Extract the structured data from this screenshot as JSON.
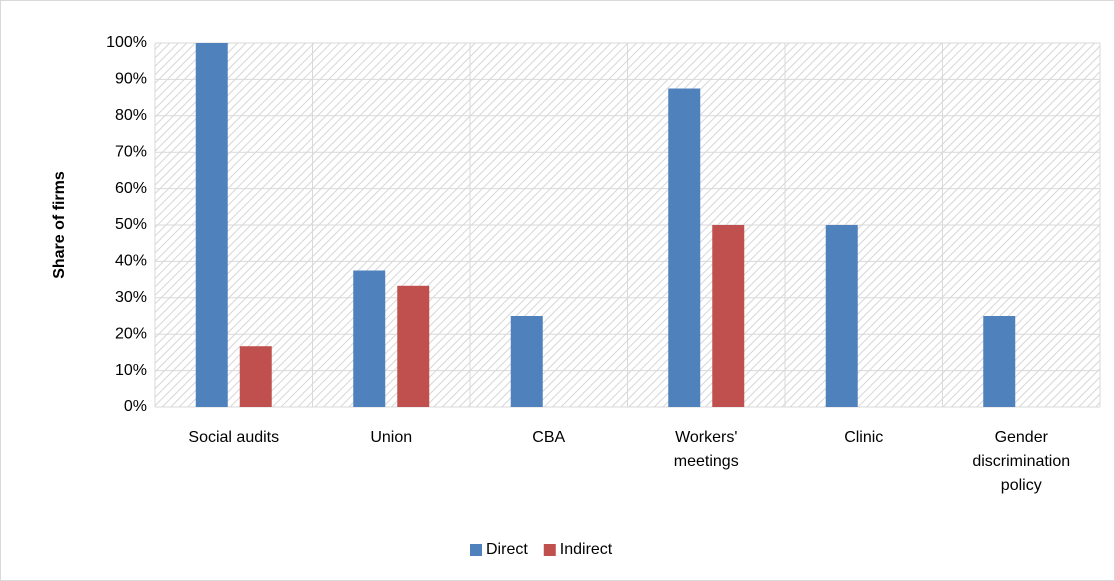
{
  "chart_data": {
    "type": "bar",
    "y_label": "Share of firms",
    "categories": [
      "Social audits",
      "Union",
      "CBA",
      "Workers' meetings",
      "Clinic",
      "Gender discrimination policy"
    ],
    "series": [
      {
        "name": "Direct",
        "color": "#4f81bd",
        "values": [
          100,
          37.5,
          25,
          87.5,
          50,
          25
        ]
      },
      {
        "name": "Indirect",
        "color": "#c0504d",
        "values": [
          16.7,
          33.3,
          0,
          50,
          0,
          0
        ]
      }
    ],
    "ylim": [
      0,
      100
    ],
    "yticks": [
      {
        "value": 0,
        "label": "0%"
      },
      {
        "value": 10,
        "label": "10%"
      },
      {
        "value": 20,
        "label": "20%"
      },
      {
        "value": 30,
        "label": "30%"
      },
      {
        "value": 40,
        "label": "40%"
      },
      {
        "value": 50,
        "label": "50%"
      },
      {
        "value": 60,
        "label": "60%"
      },
      {
        "value": 70,
        "label": "70%"
      },
      {
        "value": 80,
        "label": "80%"
      },
      {
        "value": 90,
        "label": "90%"
      },
      {
        "value": 100,
        "label": "100%"
      }
    ],
    "grid": true,
    "legend": "bottom"
  }
}
